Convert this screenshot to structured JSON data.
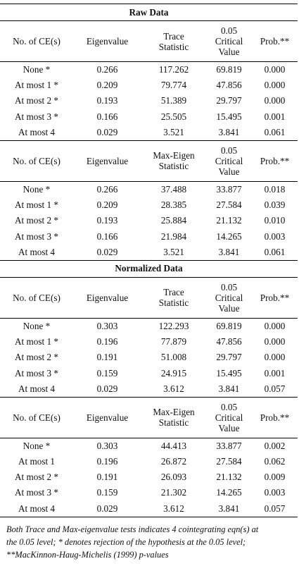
{
  "sections": [
    {
      "title": "Raw Data",
      "tables": [
        {
          "headers": [
            "No. of CE(s)",
            "Eigenvalue",
            "Trace\nStatistic",
            "0.05\nCritical\nValue",
            "Prob.**"
          ],
          "rows": [
            [
              "None *",
              "0.266",
              "117.262",
              "69.819",
              "0.000"
            ],
            [
              "At most 1 *",
              "0.209",
              "79.774",
              "47.856",
              "0.000"
            ],
            [
              "At most 2 *",
              "0.193",
              "51.389",
              "29.797",
              "0.000"
            ],
            [
              "At most 3 *",
              "0.166",
              "25.505",
              "15.495",
              "0.001"
            ],
            [
              "At most 4",
              "0.029",
              "3.521",
              "3.841",
              "0.061"
            ]
          ]
        },
        {
          "headers": [
            "No. of CE(s)",
            "Eigenvalue",
            "Max-Eigen\nStatistic",
            "0.05\nCritical\nValue",
            "Prob.**"
          ],
          "rows": [
            [
              "None *",
              "0.266",
              "37.488",
              "33.877",
              "0.018"
            ],
            [
              "At most 1 *",
              "0.209",
              "28.385",
              "27.584",
              "0.039"
            ],
            [
              "At most 2 *",
              "0.193",
              "25.884",
              "21.132",
              "0.010"
            ],
            [
              "At most 3 *",
              "0.166",
              "21.984",
              "14.265",
              "0.003"
            ],
            [
              "At most 4",
              "0.029",
              "3.521",
              "3.841",
              "0.061"
            ]
          ]
        }
      ]
    },
    {
      "title": "Normalized Data",
      "tables": [
        {
          "headers": [
            "No. of CE(s)",
            "Eigenvalue",
            "Trace\nStatistic",
            "0.05\nCritical\nValue",
            "Prob.**"
          ],
          "rows": [
            [
              "None *",
              "0.303",
              "122.293",
              "69.819",
              "0.000"
            ],
            [
              "At most 1 *",
              "0.196",
              "77.879",
              "47.856",
              "0.000"
            ],
            [
              "At most 2 *",
              "0.191",
              "51.008",
              "29.797",
              "0.000"
            ],
            [
              "At most 3 *",
              "0.159",
              "24.915",
              "15.495",
              "0.001"
            ],
            [
              "At most 4",
              "0.029",
              "3.612",
              "3.841",
              "0.057"
            ]
          ]
        },
        {
          "headers": [
            "No. of CE(s)",
            "Eigenvalue",
            "Max-Eigen\nStatistic",
            "0.05\nCritical\nValue",
            "Prob.**"
          ],
          "rows": [
            [
              "None *",
              "0.303",
              "44.413",
              "33.877",
              "0.002"
            ],
            [
              "At most 1",
              "0.196",
              "26.872",
              "27.584",
              "0.062"
            ],
            [
              "At most 2 *",
              "0.191",
              "26.093",
              "21.132",
              "0.009"
            ],
            [
              "At most 3 *",
              "0.159",
              "21.302",
              "14.265",
              "0.003"
            ],
            [
              "At most 4",
              "0.029",
              "3.612",
              "3.841",
              "0.057"
            ]
          ]
        }
      ]
    }
  ],
  "note_lines": [
    "Both Trace and Max-eigenvalue tests indicates 4 cointegrating eqn(s) at",
    "the 0.05 level; * denotes rejection of the hypothesis at the 0.05 level;",
    "**MacKinnon-Haug-Michelis (1999) p-values"
  ]
}
